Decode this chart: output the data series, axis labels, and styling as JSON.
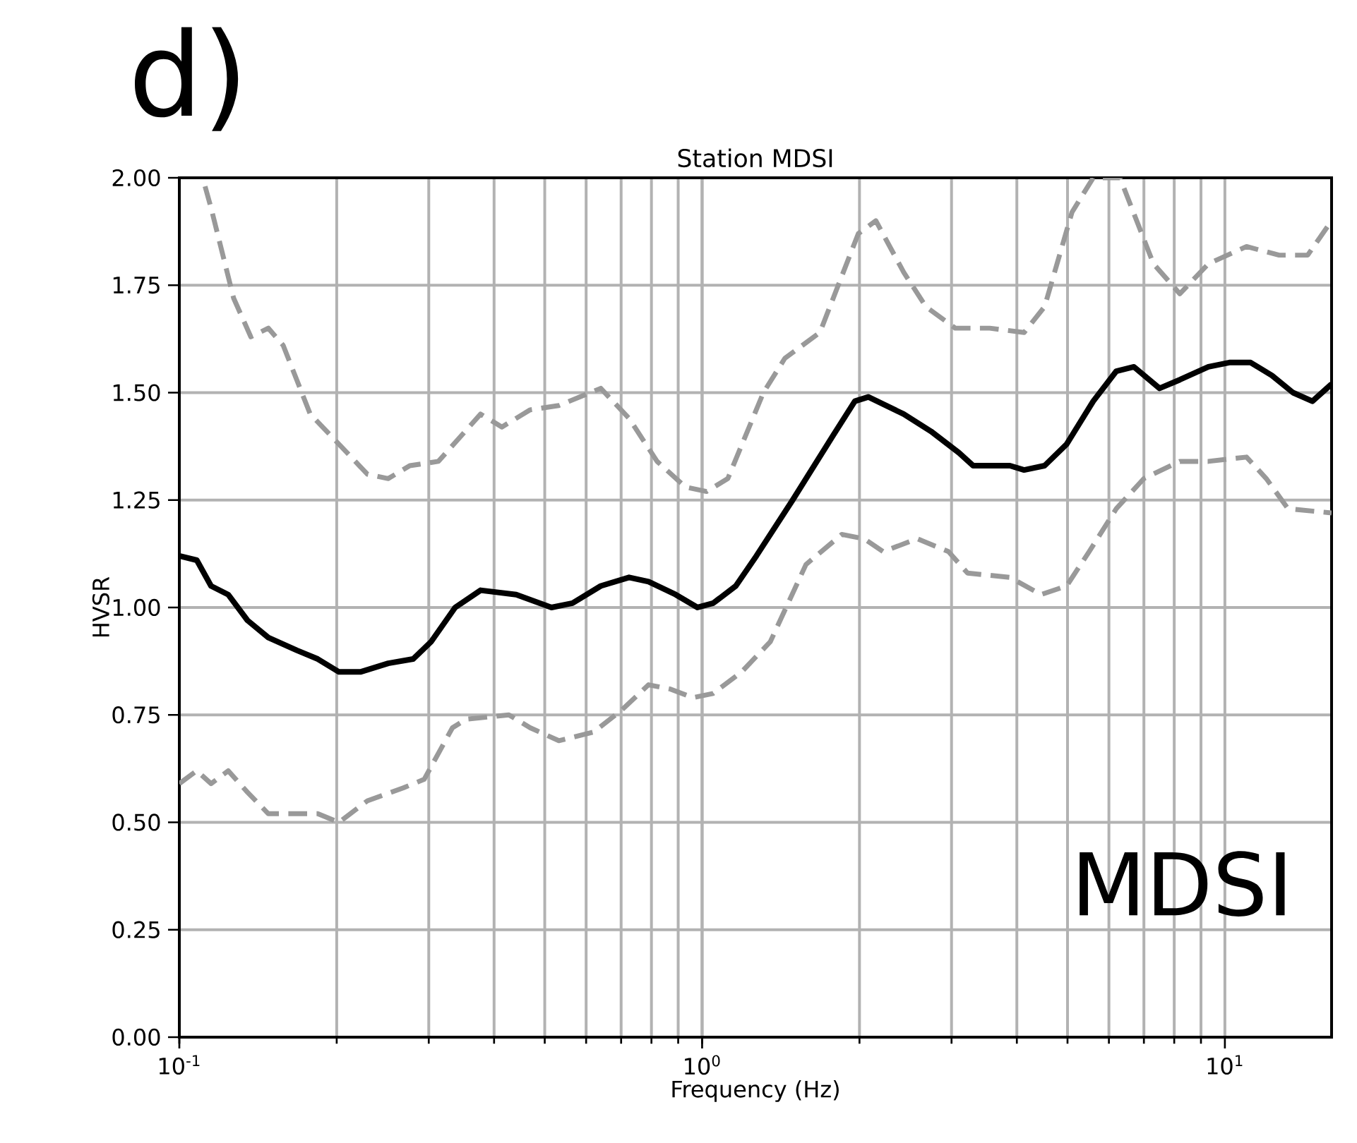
{
  "chart_data": {
    "type": "line",
    "title": "Station MDSI",
    "xlabel": "Frequency (Hz)",
    "ylabel": "HVSR",
    "annotations": [
      "d)",
      "MDSI"
    ],
    "log": "x",
    "grid": true,
    "xlim": [
      0.1,
      16
    ],
    "ylim": [
      0,
      2
    ],
    "xticks": [
      {
        "value": 0.1,
        "label": "10$^{-1}$"
      },
      {
        "value": 1,
        "label": "10$^{0}$"
      },
      {
        "value": 10,
        "label": "10$^{1}$"
      }
    ],
    "yticks": [
      {
        "value": 0,
        "label": "0.00"
      },
      {
        "value": 0.25,
        "label": "0.25"
      },
      {
        "value": 0.5,
        "label": "0.50"
      },
      {
        "value": 0.75,
        "label": "0.75"
      },
      {
        "value": 1,
        "label": "1.00"
      },
      {
        "value": 1.25,
        "label": "1.25"
      },
      {
        "value": 1.5,
        "label": "1.50"
      },
      {
        "value": 1.75,
        "label": "1.75"
      },
      {
        "value": 2,
        "label": "2.00"
      }
    ],
    "series": [
      {
        "color": "#999999",
        "line_style": "dashed",
        "x": [
          0.112,
          0.115,
          0.127,
          0.137,
          0.148,
          0.158,
          0.178,
          0.202,
          0.229,
          0.251,
          0.276,
          0.313,
          0.377,
          0.414,
          0.469,
          0.532,
          0.64,
          0.725,
          0.82,
          0.93,
          1.02,
          1.12,
          1.31,
          1.44,
          1.68,
          1.99,
          2.15,
          2.43,
          2.68,
          3.05,
          3.55,
          4.13,
          4.52,
          5.1,
          5.6,
          6.3,
          7.3,
          8.2,
          9.3,
          11,
          12.7,
          14.4,
          16
        ],
        "values": [
          1.98,
          1.93,
          1.72,
          1.63,
          1.65,
          1.61,
          1.45,
          1.38,
          1.31,
          1.3,
          1.33,
          1.34,
          1.45,
          1.42,
          1.46,
          1.47,
          1.51,
          1.44,
          1.34,
          1.28,
          1.27,
          1.3,
          1.5,
          1.58,
          1.64,
          1.87,
          1.9,
          1.78,
          1.7,
          1.65,
          1.65,
          1.64,
          1.7,
          1.92,
          2.0,
          2.0,
          1.8,
          1.73,
          1.8,
          1.84,
          1.82,
          1.82,
          1.9
        ]
      },
      {
        "color": "#999999",
        "line_style": "dashed",
        "x": [
          0.1,
          0.108,
          0.115,
          0.124,
          0.135,
          0.148,
          0.168,
          0.184,
          0.202,
          0.229,
          0.268,
          0.294,
          0.333,
          0.354,
          0.427,
          0.469,
          0.532,
          0.62,
          0.7,
          0.79,
          0.87,
          0.96,
          1.05,
          1.19,
          1.35,
          1.58,
          1.85,
          2.04,
          2.22,
          2.58,
          2.96,
          3.22,
          3.88,
          4.45,
          4.98,
          5.5,
          6.2,
          7.0,
          8.2,
          9.3,
          11,
          12,
          13.2,
          16
        ],
        "values": [
          0.59,
          0.62,
          0.59,
          0.62,
          0.57,
          0.52,
          0.52,
          0.52,
          0.5,
          0.55,
          0.58,
          0.6,
          0.72,
          0.74,
          0.75,
          0.72,
          0.69,
          0.71,
          0.76,
          0.82,
          0.81,
          0.79,
          0.8,
          0.85,
          0.92,
          1.1,
          1.17,
          1.16,
          1.13,
          1.16,
          1.13,
          1.08,
          1.07,
          1.03,
          1.05,
          1.13,
          1.23,
          1.3,
          1.34,
          1.34,
          1.35,
          1.3,
          1.23,
          1.22
        ]
      },
      {
        "color": "#000000",
        "line_style": "solid",
        "x": [
          0.1,
          0.108,
          0.115,
          0.124,
          0.135,
          0.148,
          0.168,
          0.184,
          0.202,
          0.222,
          0.251,
          0.28,
          0.303,
          0.337,
          0.377,
          0.441,
          0.515,
          0.565,
          0.64,
          0.725,
          0.79,
          0.89,
          0.98,
          1.05,
          1.16,
          1.27,
          1.49,
          1.78,
          1.96,
          2.08,
          2.43,
          2.74,
          3.1,
          3.3,
          3.88,
          4.13,
          4.52,
          4.98,
          5.6,
          6.2,
          6.7,
          7.5,
          8.2,
          9.3,
          10.2,
          11.2,
          12.3,
          13.5,
          14.7,
          16
        ],
        "values": [
          1.12,
          1.11,
          1.05,
          1.03,
          0.97,
          0.93,
          0.9,
          0.88,
          0.85,
          0.85,
          0.87,
          0.88,
          0.92,
          1.0,
          1.04,
          1.03,
          1.0,
          1.01,
          1.05,
          1.07,
          1.06,
          1.03,
          1.0,
          1.01,
          1.05,
          1.12,
          1.25,
          1.4,
          1.48,
          1.49,
          1.45,
          1.41,
          1.36,
          1.33,
          1.33,
          1.32,
          1.33,
          1.38,
          1.48,
          1.55,
          1.56,
          1.51,
          1.53,
          1.56,
          1.57,
          1.57,
          1.54,
          1.5,
          1.48,
          1.52
        ]
      }
    ]
  }
}
